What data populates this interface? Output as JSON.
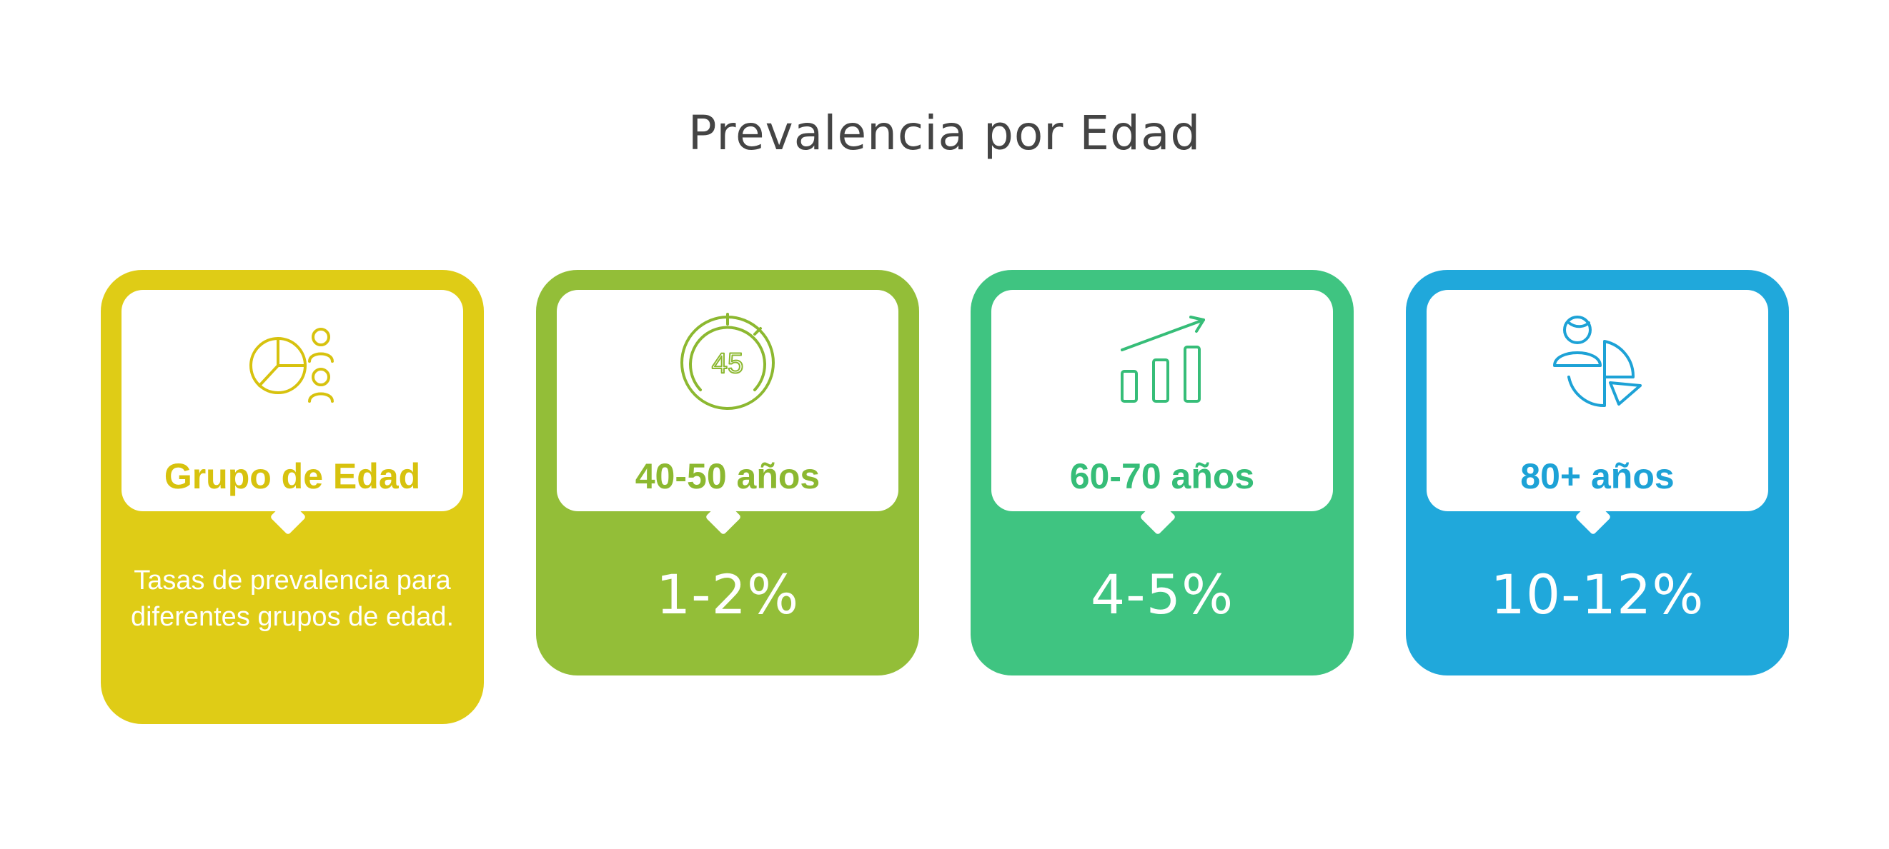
{
  "title": "Prevalencia por Edad",
  "colors": {
    "card_1": "#DFCC16",
    "card_2": "#93BE38",
    "card_3": "#3FC481",
    "card_4": "#20A8DB",
    "title": "#444444"
  },
  "cards": [
    {
      "icon": "pie-chart-people-icon",
      "label": "Grupo de Edad",
      "description": "Tasas de prevalencia para diferentes grupos de edad."
    },
    {
      "icon": "clock-45-icon",
      "label": "40-50 años",
      "value": "1-2%"
    },
    {
      "icon": "bar-chart-growth-icon",
      "label": "60-70 años",
      "value": "4-5%"
    },
    {
      "icon": "person-pie-chart-icon",
      "label": "80+ años",
      "value": "10-12%"
    }
  ],
  "icon_texts": {
    "clock_number": "45"
  }
}
